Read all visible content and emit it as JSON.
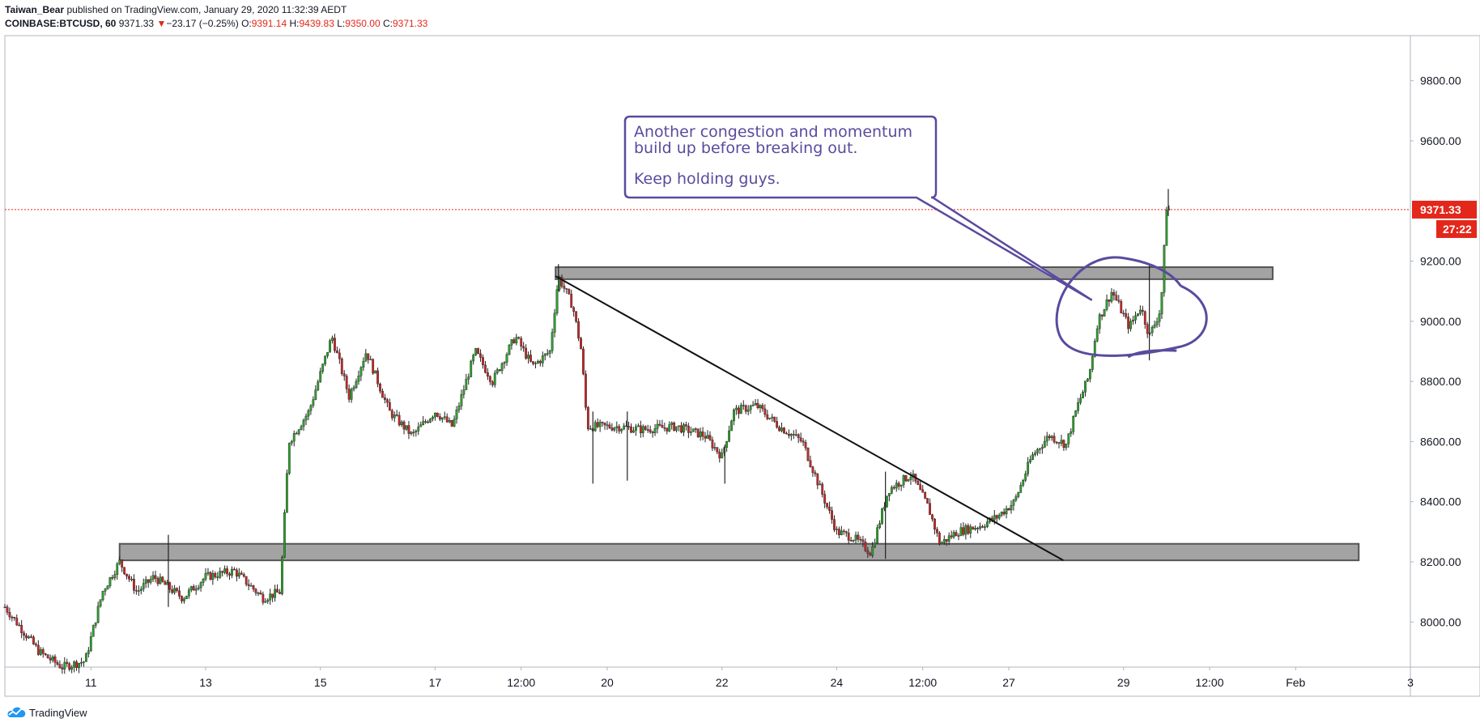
{
  "header": {
    "author": "Taiwan_Bear",
    "published_text": " published on TradingView.com, January 29, 2020 11:32:39 AEDT",
    "symbol": "COINBASE:BTCUSD, 60",
    "last": "9371.33",
    "change_arrow": "▼",
    "change": "−23.17 (−0.25%)",
    "o_label": "O:",
    "o_value": "9391.14",
    "h_label": "H:",
    "h_value": "9439.83",
    "l_label": "L:",
    "l_value": "9350.00",
    "c_label": "C:",
    "c_value": "9371.33"
  },
  "footer": {
    "logo_text": "TradingView",
    "logo_icon": "tradingview-cloud-icon"
  },
  "colors": {
    "up": "#2ca02c",
    "down": "#c62828",
    "annotation": "#5b4a9e",
    "price_badge": "#e3271b",
    "zone": "#a3a3a3"
  },
  "chart_data": {
    "type": "candlestick",
    "symbol": "COINBASE:BTCUSD",
    "interval": "60",
    "ylim": [
      7850,
      9950
    ],
    "y_ticks": [
      8000,
      8200,
      8400,
      8600,
      8800,
      9000,
      9200,
      9600,
      9800
    ],
    "y_tick_labels": [
      "8000.00",
      "8200.00",
      "8400.00",
      "8600.00",
      "8800.00",
      "9000.00",
      "9200.00",
      "9600.00",
      "9800.00"
    ],
    "x_range_days": [
      9.5,
      34.0
    ],
    "x_ticks": [
      {
        "day": 11.0,
        "label": "11"
      },
      {
        "day": 13.0,
        "label": "13"
      },
      {
        "day": 15.0,
        "label": "15"
      },
      {
        "day": 17.0,
        "label": "17"
      },
      {
        "day": 18.5,
        "label": "12:00"
      },
      {
        "day": 20.0,
        "label": "20"
      },
      {
        "day": 22.0,
        "label": "22"
      },
      {
        "day": 24.0,
        "label": "24"
      },
      {
        "day": 25.5,
        "label": "12:00"
      },
      {
        "day": 27.0,
        "label": "27"
      },
      {
        "day": 29.0,
        "label": "29"
      },
      {
        "day": 30.5,
        "label": "12:00"
      },
      {
        "day": 32.0,
        "label": "Feb"
      },
      {
        "day": 34.0,
        "label": "3"
      }
    ],
    "price_path": [
      [
        9.5,
        8050
      ],
      [
        10.1,
        7900
      ],
      [
        10.5,
        7850
      ],
      [
        10.9,
        7870
      ],
      [
        11.2,
        8100
      ],
      [
        11.5,
        8200
      ],
      [
        11.8,
        8100
      ],
      [
        12.1,
        8150
      ],
      [
        12.6,
        8080
      ],
      [
        13.0,
        8150
      ],
      [
        13.5,
        8170
      ],
      [
        14.0,
        8080
      ],
      [
        14.3,
        8100
      ],
      [
        14.45,
        8600
      ],
      [
        14.8,
        8700
      ],
      [
        15.2,
        8950
      ],
      [
        15.5,
        8750
      ],
      [
        15.8,
        8900
      ],
      [
        16.2,
        8700
      ],
      [
        16.6,
        8620
      ],
      [
        17.0,
        8700
      ],
      [
        17.3,
        8650
      ],
      [
        17.7,
        8900
      ],
      [
        18.0,
        8800
      ],
      [
        18.4,
        8950
      ],
      [
        18.7,
        8850
      ],
      [
        19.0,
        8900
      ],
      [
        19.15,
        9150
      ],
      [
        19.4,
        9050
      ],
      [
        19.55,
        8900
      ],
      [
        19.65,
        8650
      ],
      [
        20.2,
        8650
      ],
      [
        20.6,
        8640
      ],
      [
        21.2,
        8650
      ],
      [
        21.7,
        8620
      ],
      [
        22.0,
        8550
      ],
      [
        22.2,
        8700
      ],
      [
        22.6,
        8720
      ],
      [
        23.0,
        8650
      ],
      [
        23.4,
        8600
      ],
      [
        23.7,
        8450
      ],
      [
        24.0,
        8300
      ],
      [
        24.3,
        8280
      ],
      [
        24.6,
        8230
      ],
      [
        24.9,
        8440
      ],
      [
        25.3,
        8490
      ],
      [
        25.6,
        8380
      ],
      [
        25.8,
        8260
      ],
      [
        26.1,
        8300
      ],
      [
        26.5,
        8320
      ],
      [
        26.8,
        8350
      ],
      [
        27.1,
        8400
      ],
      [
        27.4,
        8550
      ],
      [
        27.7,
        8620
      ],
      [
        28.0,
        8590
      ],
      [
        28.2,
        8720
      ],
      [
        28.4,
        8820
      ],
      [
        28.55,
        9000
      ],
      [
        28.8,
        9100
      ],
      [
        29.1,
        8980
      ],
      [
        29.3,
        9050
      ],
      [
        29.45,
        8950
      ],
      [
        29.65,
        9040
      ],
      [
        29.75,
        9380
      ],
      [
        29.8,
        9371.33
      ]
    ],
    "wicks": [
      {
        "day": 12.35,
        "high": 8290,
        "low": 8050
      },
      {
        "day": 19.15,
        "high": 9190,
        "low": 9100
      },
      {
        "day": 19.75,
        "high": 8700,
        "low": 8460
      },
      {
        "day": 20.35,
        "high": 8700,
        "low": 8470
      },
      {
        "day": 22.05,
        "high": 8590,
        "low": 8460
      },
      {
        "day": 24.85,
        "high": 8500,
        "low": 8210
      },
      {
        "day": 29.45,
        "high": 9190,
        "low": 8870
      },
      {
        "day": 29.78,
        "high": 9439.83,
        "low": 9350
      }
    ],
    "last_price": 9371.33,
    "last_price_label": "9371.33",
    "countdown_label": "27:22",
    "zones": [
      {
        "name": "resistance",
        "from_day": 19.1,
        "to_day": 31.6,
        "low": 9140,
        "high": 9180
      },
      {
        "name": "support",
        "from_day": 11.5,
        "to_day": 33.1,
        "low": 8205,
        "high": 8260
      }
    ],
    "trendline": {
      "start_day": 19.1,
      "start_price": 9150,
      "end_day": 27.95,
      "end_price": 8205
    },
    "annotation": {
      "lines": [
        "Another congestion and momentum",
        "build up before breaking out.",
        "",
        "Keep holding guys."
      ],
      "pointer_day": 28.45,
      "pointer_price": 9070
    },
    "grid": false,
    "legend": "none"
  }
}
